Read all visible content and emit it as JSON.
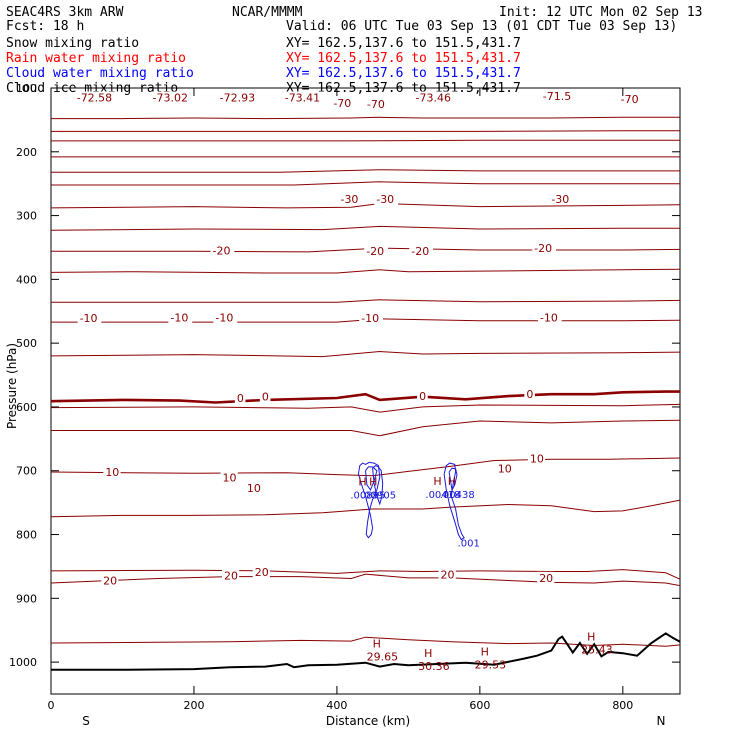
{
  "header": {
    "model": "SEAC4RS  3km ARW",
    "org": "NCAR/MMMM",
    "init": "Init: 12 UTC Mon 02 Sep 13",
    "fcst": "Fcst:    18 h",
    "valid": "Valid: 06 UTC Tue 03 Sep 13 (01 CDT Tue 03 Sep 13)"
  },
  "fields": [
    {
      "name": "Snow mixing ratio",
      "xy": "XY= 162.5,137.6 to 151.5,431.7",
      "color": "#000000"
    },
    {
      "name": "Rain water mixing ratio",
      "xy": "XY= 162.5,137.6 to 151.5,431.7",
      "color": "#ff0000"
    },
    {
      "name": "Cloud water mixing ratio",
      "xy": "XY= 162.5,137.6 to 151.5,431.7",
      "color": "#0000ff"
    },
    {
      "name": "Cloud ice mixing ratio",
      "xy": "XY= 162.5,137.6 to 151.5,431.7",
      "color": "#000000"
    }
  ],
  "colors": {
    "temperature": "#8b0000",
    "cloud_water": "#1a1adb",
    "terrain": "#000000"
  },
  "chart_data": {
    "type": "cross-section contour",
    "xlabel": "Distance (km)",
    "ylabel": "Pressure (hPa)",
    "xlim": [
      0,
      880
    ],
    "ylim": [
      1050,
      100
    ],
    "x_ticks": [
      0,
      200,
      400,
      600,
      800
    ],
    "y_ticks": [
      200,
      300,
      400,
      500,
      600,
      700,
      800,
      900,
      1000
    ],
    "y_top_label": "100",
    "endpoint_labels": {
      "left": "S",
      "right": "N"
    },
    "temperature_contours": [
      {
        "x": [
          0,
          100,
          200,
          300,
          420,
          460,
          520,
          600,
          700,
          800,
          880
        ],
        "p": [
          148,
          148,
          147,
          148,
          147,
          146,
          147,
          147,
          147,
          146,
          146
        ]
      },
      {
        "x": [
          0,
          200,
          400,
          600,
          800,
          880
        ],
        "p": [
          168,
          168,
          168,
          168,
          167,
          167
        ]
      },
      {
        "x": [
          0,
          200,
          400,
          600,
          800,
          880
        ],
        "p": [
          183,
          183,
          183,
          182,
          182,
          182
        ]
      },
      {
        "x": [
          0,
          200,
          400,
          600,
          800,
          880
        ],
        "p": [
          208,
          208,
          208,
          208,
          208,
          208
        ]
      },
      {
        "x": [
          0,
          200,
          320,
          460,
          600,
          800,
          880
        ],
        "p": [
          232,
          232,
          232,
          228,
          230,
          230,
          230
        ]
      },
      {
        "x": [
          0,
          200,
          340,
          460,
          600,
          800,
          880
        ],
        "p": [
          252,
          252,
          252,
          247,
          250,
          250,
          250
        ]
      },
      {
        "x": [
          0,
          200,
          330,
          420,
          460,
          600,
          800,
          880
        ],
        "p": [
          288,
          286,
          288,
          287,
          281,
          286,
          284,
          283
        ]
      },
      {
        "x": [
          0,
          200,
          380,
          460,
          600,
          800,
          880
        ],
        "p": [
          323,
          321,
          322,
          317,
          321,
          320,
          320
        ]
      },
      {
        "x": [
          0,
          200,
          360,
          460,
          600,
          800,
          880
        ],
        "p": [
          356,
          356,
          357,
          351,
          354,
          354,
          353
        ]
      },
      {
        "x": [
          0,
          120,
          300,
          400,
          460,
          500,
          600,
          800,
          880
        ],
        "p": [
          389,
          388,
          390,
          390,
          385,
          388,
          387,
          385,
          384
        ]
      },
      {
        "x": [
          0,
          200,
          400,
          460,
          600,
          800,
          880
        ],
        "p": [
          436,
          436,
          436,
          432,
          435,
          434,
          433
        ]
      },
      {
        "x": [
          0,
          200,
          400,
          460,
          600,
          800,
          880
        ],
        "p": [
          467,
          467,
          467,
          462,
          465,
          465,
          464
        ]
      },
      {
        "x": [
          0,
          200,
          380,
          460,
          520,
          600,
          800,
          880
        ],
        "p": [
          520,
          518,
          521,
          513,
          517,
          516,
          515,
          514
        ]
      },
      {
        "x": [
          0,
          200,
          360,
          420,
          460,
          520,
          600,
          800,
          880
        ],
        "p": [
          601,
          600,
          602,
          600,
          608,
          600,
          597,
          598,
          596
        ]
      },
      {
        "x": [
          0,
          200,
          360,
          420,
          460,
          520,
          600,
          700,
          800,
          880
        ],
        "p": [
          637,
          637,
          637,
          637,
          645,
          631,
          622,
          625,
          622,
          621
        ]
      },
      {
        "x": [
          0,
          200,
          330,
          400,
          450,
          500,
          560,
          620,
          700,
          780,
          880
        ],
        "p": [
          702,
          704,
          703,
          706,
          708,
          701,
          693,
          684,
          682,
          682,
          680
        ]
      },
      {
        "x": [
          0,
          100,
          200,
          300,
          380,
          450,
          520,
          560,
          640,
          700,
          760,
          800,
          840,
          880
        ],
        "p": [
          772,
          770,
          770,
          769,
          766,
          760,
          760,
          757,
          753,
          755,
          764,
          763,
          755,
          746
        ]
      },
      {
        "x": [
          0,
          200,
          300,
          400,
          460,
          520,
          600,
          700,
          750,
          800,
          860,
          880
        ],
        "p": [
          857,
          856,
          857,
          861,
          857,
          858,
          857,
          858,
          858,
          855,
          860,
          870
        ]
      },
      {
        "x": [
          0,
          150,
          250,
          350,
          420,
          440,
          500,
          560,
          640,
          700,
          760,
          800,
          860,
          880
        ],
        "p": [
          876,
          869,
          866,
          866,
          869,
          862,
          868,
          868,
          872,
          875,
          876,
          873,
          876,
          880
        ]
      },
      {
        "x": [
          0,
          150,
          250,
          350,
          420,
          440,
          500,
          560,
          640,
          700,
          760,
          800,
          860,
          880
        ],
        "p": [
          970,
          969,
          968,
          966,
          967,
          961,
          965,
          968,
          971,
          970,
          974,
          972,
          975,
          973
        ]
      }
    ],
    "freezing_contour": {
      "x": [
        0,
        100,
        180,
        230,
        300,
        400,
        440,
        460,
        520,
        580,
        640,
        700,
        760,
        800,
        860,
        880
      ],
      "p": [
        591,
        589,
        590,
        593,
        589,
        586,
        580,
        589,
        584,
        588,
        583,
        580,
        580,
        577,
        576,
        576
      ]
    },
    "terrain": {
      "x": [
        0,
        100,
        200,
        250,
        300,
        330,
        340,
        360,
        400,
        440,
        460,
        480,
        500,
        540,
        580,
        620,
        660,
        680,
        700,
        710,
        715,
        720,
        730,
        740,
        750,
        760,
        770,
        780,
        800,
        820,
        840,
        860,
        870,
        880
      ],
      "p": [
        1012,
        1012,
        1011,
        1008,
        1007,
        1003,
        1008,
        1005,
        1004,
        1001,
        1007,
        1003,
        1005,
        1003,
        1001,
        1004,
        995,
        990,
        982,
        964,
        960,
        968,
        985,
        970,
        987,
        972,
        991,
        984,
        986,
        990,
        970,
        955,
        962,
        968
      ]
    },
    "contour_labels": [
      {
        "x": 36,
        "p": 118,
        "text": "-72.58"
      },
      {
        "x": 142,
        "p": 118,
        "text": "-73.02"
      },
      {
        "x": 236,
        "p": 118,
        "text": "-72.93"
      },
      {
        "x": 327,
        "p": 118,
        "text": "-73.41"
      },
      {
        "x": 395,
        "p": 127,
        "text": "-70"
      },
      {
        "x": 442,
        "p": 128,
        "text": "-70"
      },
      {
        "x": 510,
        "p": 118,
        "text": "-73.46"
      },
      {
        "x": 688,
        "p": 116,
        "text": "-71.5"
      },
      {
        "x": 797,
        "p": 120,
        "text": "-70"
      },
      {
        "x": 405,
        "p": 277,
        "text": "-30"
      },
      {
        "x": 455,
        "p": 277,
        "text": "-30"
      },
      {
        "x": 700,
        "p": 277,
        "text": "-30"
      },
      {
        "x": 226,
        "p": 358,
        "text": "-20"
      },
      {
        "x": 441,
        "p": 359,
        "text": "-20"
      },
      {
        "x": 504,
        "p": 359,
        "text": "-20"
      },
      {
        "x": 676,
        "p": 354,
        "text": "-20"
      },
      {
        "x": 40,
        "p": 464,
        "text": "-10"
      },
      {
        "x": 167,
        "p": 463,
        "text": "-10"
      },
      {
        "x": 230,
        "p": 463,
        "text": "-10"
      },
      {
        "x": 434,
        "p": 464,
        "text": "-10"
      },
      {
        "x": 684,
        "p": 463,
        "text": "-10"
      },
      {
        "x": 260,
        "p": 589,
        "text": "0"
      },
      {
        "x": 295,
        "p": 587,
        "text": "0"
      },
      {
        "x": 515,
        "p": 586,
        "text": "0"
      },
      {
        "x": 665,
        "p": 583,
        "text": "0"
      },
      {
        "x": 76,
        "p": 705,
        "text": "10"
      },
      {
        "x": 240,
        "p": 714,
        "text": "10"
      },
      {
        "x": 274,
        "p": 730,
        "text": "10"
      },
      {
        "x": 625,
        "p": 700,
        "text": "10"
      },
      {
        "x": 670,
        "p": 684,
        "text": "10"
      },
      {
        "x": 73,
        "p": 875,
        "text": "20"
      },
      {
        "x": 242,
        "p": 867,
        "text": "20"
      },
      {
        "x": 285,
        "p": 862,
        "text": "20"
      },
      {
        "x": 545,
        "p": 866,
        "text": "20"
      },
      {
        "x": 683,
        "p": 871,
        "text": "20"
      }
    ],
    "high_labels": [
      {
        "x": 430,
        "p": 723,
        "h": "H",
        "value": ".00895"
      },
      {
        "x": 445,
        "p": 723,
        "h": "H",
        "value": ".00905"
      },
      {
        "x": 535,
        "p": 722,
        "h": "H",
        "value": ".00418"
      },
      {
        "x": 555,
        "p": 722,
        "h": "H",
        "value": ".00438"
      },
      {
        "x": 580,
        "p": 798,
        "h": "",
        "value": ".001"
      },
      {
        "x": 450,
        "p": 977,
        "h": "H",
        "value": "29.65"
      },
      {
        "x": 522,
        "p": 992,
        "h": "H",
        "value": "30.36"
      },
      {
        "x": 601,
        "p": 990,
        "h": "H",
        "value": "29.53"
      },
      {
        "x": 750,
        "p": 966,
        "h": "H",
        "value": "25.43"
      }
    ],
    "cloud_water_contours": [
      {
        "x": [
          430,
          432,
          436,
          440,
          445,
          452,
          458,
          460,
          456,
          450,
          446,
          443,
          441,
          444,
          448,
          450,
          447,
          440,
          434,
          430
        ],
        "p": [
          705,
          692,
          688,
          690,
          687,
          688,
          692,
          710,
          730,
          745,
          760,
          780,
          800,
          805,
          800,
          790,
          770,
          740,
          720,
          705
        ]
      },
      {
        "x": [
          440,
          444,
          450,
          456,
          452,
          447,
          442,
          440
        ],
        "p": [
          700,
          694,
          694,
          700,
          716,
          730,
          722,
          700
        ]
      },
      {
        "x": [
          450,
          454,
          458,
          462,
          464,
          463,
          460,
          456,
          452,
          450
        ],
        "p": [
          696,
          692,
          694,
          700,
          720,
          740,
          752,
          740,
          720,
          696
        ]
      },
      {
        "x": [
          550,
          553,
          558,
          565,
          566,
          563,
          560,
          566,
          570,
          575,
          578,
          574,
          570,
          565,
          558,
          553,
          550
        ],
        "p": [
          705,
          692,
          688,
          690,
          702,
          718,
          740,
          760,
          785,
          800,
          805,
          808,
          800,
          780,
          755,
          730,
          705
        ]
      },
      {
        "x": [
          557,
          561,
          566,
          568,
          565,
          561,
          557
        ],
        "p": [
          702,
          696,
          697,
          706,
          722,
          730,
          702
        ]
      }
    ]
  }
}
